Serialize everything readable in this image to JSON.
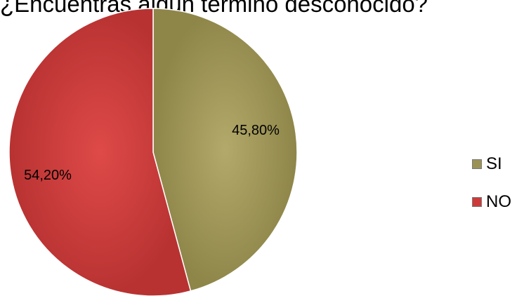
{
  "chart_data": {
    "type": "pie",
    "title": "¿Encuentras algún término desconocido?",
    "categories": [
      "SI",
      "NO"
    ],
    "values": [
      45.8,
      54.2
    ],
    "data_labels": [
      "45,80%",
      "54,20%"
    ],
    "colors": [
      "#9b9155",
      "#cc3b3a"
    ],
    "legend": "right"
  }
}
